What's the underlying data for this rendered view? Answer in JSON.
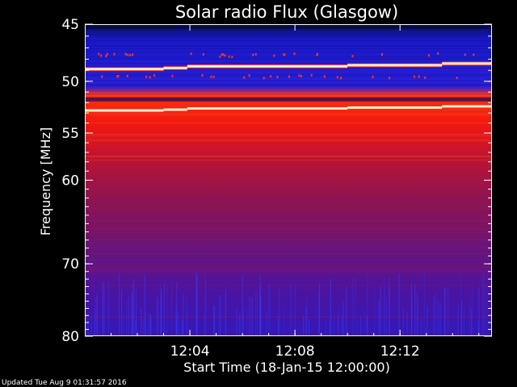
{
  "chart_data": {
    "type": "heatmap",
    "title": "Solar radio Flux (Glasgow)",
    "xlabel": "Start Time (18-Jan-15 12:00:00)",
    "ylabel": "Frequency [MHz]",
    "xlim_minutes": [
      0,
      15.5
    ],
    "ylim_mhz": [
      45,
      80
    ],
    "y_scale": "log",
    "y_inverted": true,
    "x_ticks": [
      {
        "minute": 4,
        "label": "12:04"
      },
      {
        "minute": 8,
        "label": "12:08"
      },
      {
        "minute": 12,
        "label": "12:12"
      }
    ],
    "y_ticks": [
      {
        "mhz": 45,
        "label": "45"
      },
      {
        "mhz": 50,
        "label": "50"
      },
      {
        "mhz": 55,
        "label": "55"
      },
      {
        "mhz": 60,
        "label": "60"
      },
      {
        "mhz": 70,
        "label": "70"
      },
      {
        "mhz": 80,
        "label": "80"
      }
    ],
    "colors": {
      "background": "#000000",
      "low": "#1010c0",
      "mid": "#8a1060",
      "high": "#ff2010",
      "peak": "#fff6d0"
    },
    "bright_lines_mhz": [
      48.7,
      52.6
    ]
  },
  "footer": "Updated Tue Aug  9 01:31:57 2016"
}
